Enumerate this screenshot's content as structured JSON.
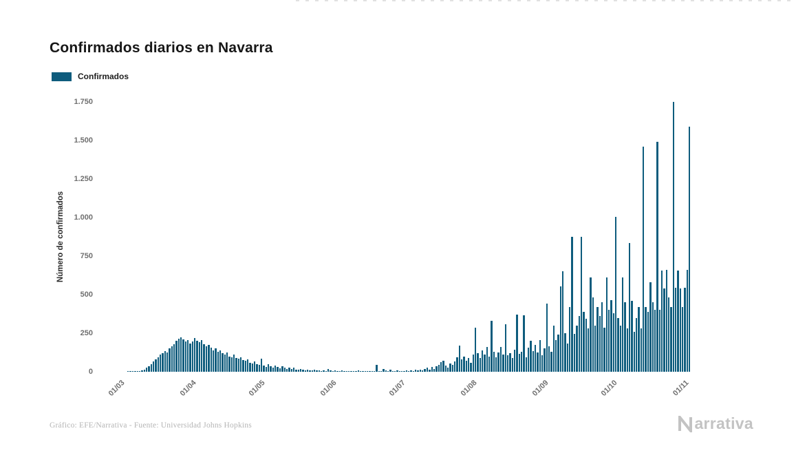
{
  "chart_data": {
    "type": "bar",
    "title": "Confirmados diarios en Navarra",
    "series_name": "Confirmados",
    "xlabel": "",
    "ylabel": "Número de confirmados",
    "ylim": [
      0,
      1750
    ],
    "grid": false,
    "legend_position": "top-left",
    "bar_color": "#0e5c7d",
    "y_ticks": [
      0,
      250,
      500,
      750,
      1000,
      1250,
      1500,
      1750
    ],
    "y_tick_labels": [
      "0",
      "250",
      "500",
      "750",
      "1.000",
      "1.250",
      "1.500",
      "1.750"
    ],
    "x_tick_labels": [
      "01/03",
      "01/04",
      "01/05",
      "01/06",
      "01/07",
      "01/08",
      "01/09",
      "01/10",
      "01/11"
    ],
    "x_tick_indices": [
      10,
      41,
      71,
      102,
      132,
      163,
      194,
      224,
      255
    ],
    "values": [
      0,
      0,
      0,
      0,
      0,
      0,
      0,
      0,
      0,
      0,
      0,
      0,
      1,
      1,
      2,
      3,
      4,
      6,
      10,
      15,
      25,
      35,
      50,
      65,
      80,
      95,
      110,
      120,
      135,
      125,
      150,
      165,
      180,
      200,
      215,
      225,
      210,
      195,
      205,
      185,
      195,
      220,
      200,
      190,
      205,
      180,
      165,
      175,
      155,
      140,
      150,
      130,
      140,
      120,
      110,
      125,
      100,
      95,
      110,
      90,
      85,
      95,
      75,
      70,
      80,
      60,
      55,
      65,
      50,
      45,
      85,
      40,
      30,
      50,
      35,
      28,
      40,
      30,
      22,
      35,
      25,
      18,
      28,
      20,
      25,
      15,
      12,
      20,
      15,
      10,
      14,
      10,
      8,
      12,
      8,
      10,
      6,
      8,
      5,
      16,
      10,
      6,
      8,
      5,
      4,
      10,
      6,
      3,
      2,
      6,
      3,
      2,
      8,
      4,
      2,
      5,
      2,
      1,
      3,
      2,
      45,
      6,
      3,
      18,
      8,
      5,
      12,
      6,
      4,
      8,
      5,
      6,
      5,
      8,
      4,
      10,
      6,
      12,
      8,
      15,
      10,
      18,
      25,
      14,
      30,
      20,
      35,
      45,
      62,
      70,
      40,
      28,
      55,
      45,
      65,
      95,
      170,
      80,
      100,
      70,
      90,
      60,
      110,
      285,
      120,
      90,
      140,
      110,
      160,
      100,
      330,
      130,
      95,
      125,
      160,
      110,
      310,
      105,
      120,
      90,
      145,
      370,
      115,
      130,
      365,
      95,
      155,
      200,
      135,
      175,
      125,
      205,
      105,
      150,
      440,
      165,
      130,
      300,
      205,
      240,
      555,
      650,
      250,
      185,
      420,
      875,
      245,
      300,
      360,
      875,
      390,
      345,
      280,
      610,
      480,
      300,
      420,
      360,
      450,
      285,
      610,
      400,
      465,
      380,
      1005,
      350,
      300,
      610,
      450,
      280,
      835,
      460,
      260,
      350,
      420,
      280,
      1460,
      420,
      390,
      580,
      450,
      400,
      1490,
      400,
      655,
      540,
      660,
      480,
      420,
      1755,
      545,
      655,
      540,
      420,
      545,
      660,
      1590
    ]
  },
  "footer": {
    "credit": "Gráfico: EFE/Narrativa - Fuente: Universidad Johns Hopkins",
    "logo_text": "arrativa"
  }
}
